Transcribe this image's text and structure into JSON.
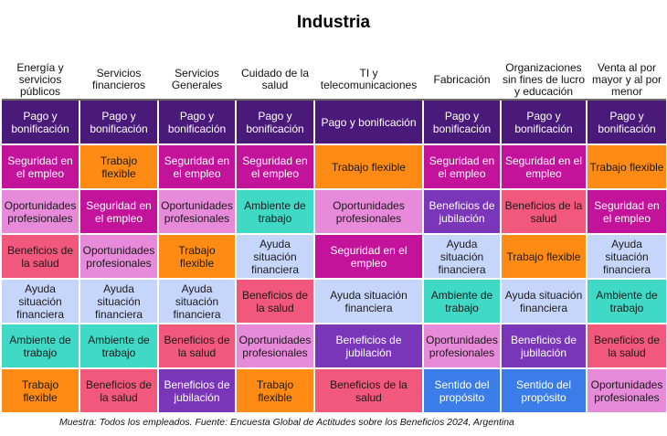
{
  "chart_data": {
    "type": "table",
    "title": "Industria",
    "columns": [
      "Energía y servicios públicos",
      "Servicios financieros",
      "Servicios Generales",
      "Cuidado de la salud",
      "TI y telecomunicaciones",
      "Fabricación",
      "Organizaciones sin fines de lucro y educación",
      "Venta al por mayor y al por menor"
    ],
    "rows": [
      [
        "Pago y bonificación",
        "Pago y bonificación",
        "Pago y bonificación",
        "Pago y bonificación",
        "Pago y bonificación",
        "Pago y bonificación",
        "Pago y bonificación",
        "Pago y bonificación"
      ],
      [
        "Seguridad en el empleo",
        "Trabajo flexible",
        "Seguridad en el empleo",
        "Seguridad en el empleo",
        "Trabajo flexible",
        "Seguridad en el empleo",
        "Seguridad en el empleo",
        "Trabajo flexible"
      ],
      [
        "Oportunidades profesionales",
        "Seguridad en el empleo",
        "Oportunidades profesionales",
        "Ambiente de trabajo",
        "Oportunidades profesionales",
        "Beneficios de jubilación",
        "Beneficios de la salud",
        "Seguridad en el empleo"
      ],
      [
        "Beneficios de la salud",
        "Oportunidades profesionales",
        "Trabajo flexible",
        "Ayuda situación financiera",
        "Seguridad en el empleo",
        "Ayuda situación financiera",
        "Trabajo flexible",
        "Ayuda situación financiera"
      ],
      [
        "Ayuda situación financiera",
        "Ayuda situación financiera",
        "Ayuda situación financiera",
        "Beneficios de la salud",
        "Ayuda situación financiera",
        "Ambiente de trabajo",
        "Ayuda situación financiera",
        "Ambiente de trabajo"
      ],
      [
        "Ambiente de trabajo",
        "Ambiente de trabajo",
        "Beneficios de la salud",
        "Oportunidades profesionales",
        "Beneficios de jubilación",
        "Oportunidades profesionales",
        "Beneficios de jubilación",
        "Beneficios de la salud"
      ],
      [
        "Trabajo flexible",
        "Beneficios de la salud",
        "Beneficios de jubilación",
        "Trabajo flexible",
        "Beneficios de la salud",
        "Sentido del propósito",
        "Sentido del propósito",
        "Oportunidades profesionales"
      ]
    ],
    "category_colors": {
      "Pago y bonificación": "#4a1a7a",
      "Seguridad en el empleo": "#c3139b",
      "Trabajo flexible": "#ff8a14",
      "Oportunidades profesionales": "#e68ad9",
      "Beneficios de la salud": "#f2577c",
      "Ayuda situación financiera": "#c6d6fa",
      "Ambiente de trabajo": "#3fd9c5",
      "Beneficios de jubilación": "#7a36b8",
      "Sentido del propósito": "#3b7de8"
    },
    "dark_text_categories": [
      "Pago y bonificación",
      "Seguridad en el empleo",
      "Beneficios de jubilación",
      "Sentido del propósito"
    ]
  },
  "footnote": "Muestra: Todos los empleados. Fuente: Encuesta Global de Actitudes sobre los Beneficios 2024, Argentina"
}
